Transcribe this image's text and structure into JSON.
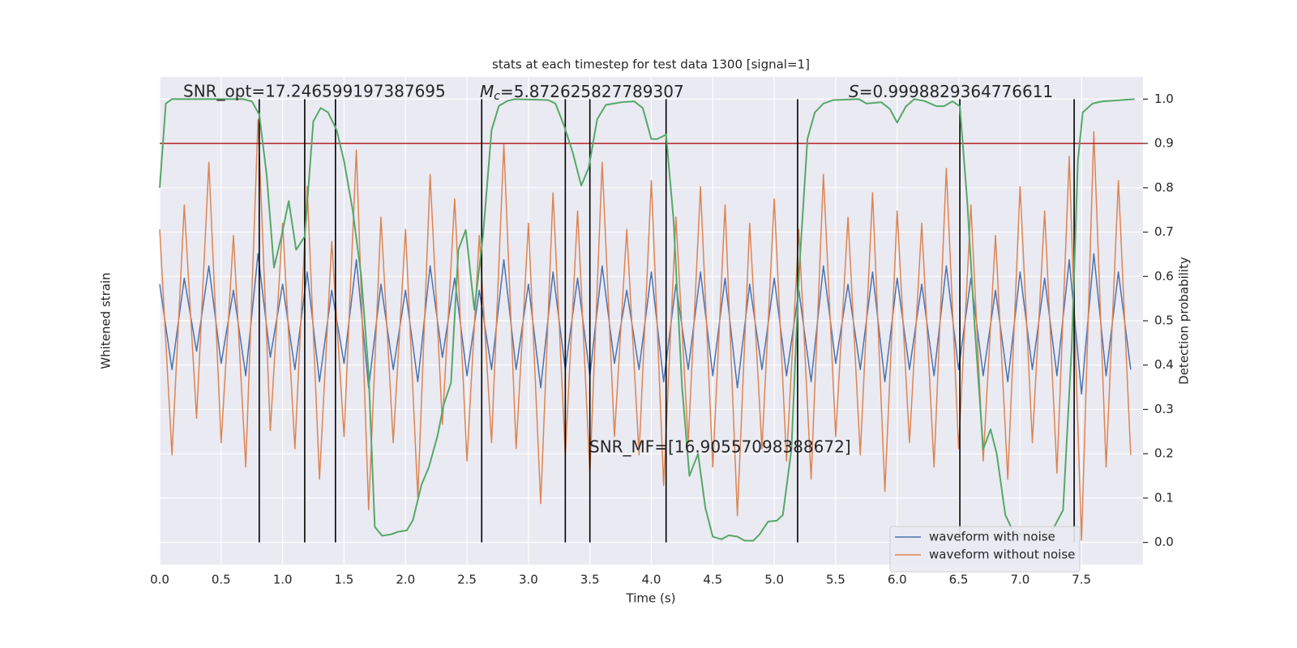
{
  "chart_data": {
    "type": "line",
    "title": "stats at each timestep for test data 1300 [signal=1]",
    "xlabel": "Time (s)",
    "ylabel": "Whitened strain",
    "y2label": "Detection probability",
    "xlim": [
      0,
      8
    ],
    "xticks": [
      {
        "value": 0,
        "label": "0.0"
      },
      {
        "value": 0.5,
        "label": "0.5"
      },
      {
        "value": 1,
        "label": "1.0"
      },
      {
        "value": 1.5,
        "label": "1.5"
      },
      {
        "value": 2,
        "label": "2.0"
      },
      {
        "value": 2.5,
        "label": "2.5"
      },
      {
        "value": 3,
        "label": "3.0"
      },
      {
        "value": 3.5,
        "label": "3.5"
      },
      {
        "value": 4,
        "label": "4.0"
      },
      {
        "value": 4.5,
        "label": "4.5"
      },
      {
        "value": 5,
        "label": "5.0"
      },
      {
        "value": 5.5,
        "label": "5.5"
      },
      {
        "value": 6,
        "label": "6.0"
      },
      {
        "value": 6.5,
        "label": "6.5"
      },
      {
        "value": 7,
        "label": "7.0"
      },
      {
        "value": 7.5,
        "label": "7.5"
      }
    ],
    "ylim": [
      -4,
      4
    ],
    "y2lim": [
      -0.05,
      1.05
    ],
    "y2ticks": [
      {
        "value": 0,
        "label": "0.0"
      },
      {
        "value": 0.1,
        "label": "0.1"
      },
      {
        "value": 0.2,
        "label": "0.2"
      },
      {
        "value": 0.3,
        "label": "0.3"
      },
      {
        "value": 0.4,
        "label": "0.4"
      },
      {
        "value": 0.5,
        "label": "0.5"
      },
      {
        "value": 0.6,
        "label": "0.6"
      },
      {
        "value": 0.7,
        "label": "0.7"
      },
      {
        "value": 0.8,
        "label": "0.8"
      },
      {
        "value": 0.9,
        "label": "0.9"
      },
      {
        "value": 1,
        "label": "1.0"
      }
    ],
    "grid": true,
    "legend": "lower right",
    "x": [
      0,
      0.1,
      0.2,
      0.3,
      0.4,
      0.5,
      0.6,
      0.7,
      0.8,
      0.9,
      1,
      1.1,
      1.2,
      1.3,
      1.4,
      1.5,
      1.6,
      1.7,
      1.8,
      1.9,
      2,
      2.1,
      2.2,
      2.3,
      2.4,
      2.5,
      2.6,
      2.7,
      2.8,
      2.9,
      3,
      3.1,
      3.2,
      3.3,
      3.4,
      3.5,
      3.6,
      3.7,
      3.8,
      3.9,
      4,
      4.1,
      4.2,
      4.3,
      4.4,
      4.5,
      4.6,
      4.7,
      4.8,
      4.9,
      5,
      5.1,
      5.2,
      5.3,
      5.4,
      5.5,
      5.6,
      5.7,
      5.8,
      5.9,
      6,
      6.1,
      6.2,
      6.3,
      6.4,
      6.5,
      6.6,
      6.7,
      6.8,
      6.9,
      7,
      7.1,
      7.2,
      7.3,
      7.4,
      7.5,
      7.6,
      7.7,
      7.8,
      7.9
    ],
    "series": [
      {
        "name": "waveform with noise",
        "color": "#4c72b0",
        "values": [
          0.6,
          -0.8,
          0.7,
          -0.5,
          0.9,
          -0.7,
          0.5,
          -0.9,
          1.1,
          -0.6,
          0.6,
          -0.8,
          0.8,
          -1.0,
          0.5,
          -0.7,
          1.0,
          -1.1,
          0.6,
          -0.8,
          0.5,
          -1.0,
          0.9,
          -0.6,
          0.7,
          -0.9,
          0.5,
          -0.8,
          1.0,
          -0.8,
          0.6,
          -1.1,
          0.8,
          -0.8,
          0.7,
          -0.9,
          0.9,
          -0.7,
          0.5,
          -0.8,
          0.8,
          -1.0,
          0.6,
          -0.8,
          0.8,
          -0.9,
          0.7,
          -1.1,
          0.6,
          -0.8,
          0.7,
          -0.9,
          0.5,
          -1.0,
          0.9,
          -0.7,
          0.6,
          -0.8,
          0.8,
          -1.0,
          0.7,
          -0.8,
          0.6,
          -0.9,
          0.9,
          -0.8,
          0.7,
          -0.9,
          0.5,
          -1.0,
          0.8,
          -0.8,
          0.7,
          -0.9,
          1.0,
          -1.2,
          1.1,
          -0.9,
          0.8,
          -0.8
        ]
      },
      {
        "name": "waveform without noise",
        "color": "#dd8452",
        "values": [
          1.5,
          -2.2,
          1.9,
          -1.6,
          2.6,
          -2.0,
          1.4,
          -2.4,
          3.3,
          -1.8,
          1.6,
          -2.1,
          2.2,
          -2.6,
          1.3,
          -1.9,
          2.8,
          -3.1,
          1.7,
          -2.0,
          1.5,
          -2.9,
          2.4,
          -1.7,
          2.0,
          -2.3,
          1.4,
          -2.0,
          2.9,
          -2.1,
          1.6,
          -3.0,
          2.1,
          -2.2,
          1.8,
          -2.5,
          2.6,
          -1.9,
          1.5,
          -2.2,
          2.3,
          -2.7,
          1.7,
          -2.0,
          2.2,
          -2.4,
          1.9,
          -3.2,
          1.6,
          -2.1,
          2.0,
          -2.3,
          1.5,
          -2.6,
          2.4,
          -1.9,
          1.7,
          -2.2,
          2.1,
          -2.8,
          1.8,
          -2.0,
          1.6,
          -2.4,
          2.5,
          -2.1,
          1.9,
          -2.3,
          1.4,
          -2.6,
          2.2,
          -2.0,
          1.8,
          -2.5,
          2.7,
          -3.6,
          3.1,
          -2.4,
          2.3,
          -2.2
        ]
      },
      {
        "color": "#55a868",
        "axis": "y2",
        "x": [
          0,
          0.05,
          0.1,
          0.68,
          0.75,
          0.81,
          0.87,
          0.93,
          0.99,
          1.05,
          1.11,
          1.18,
          1.25,
          1.31,
          1.37,
          1.44,
          1.5,
          1.57,
          1.64,
          1.7,
          1.75,
          1.81,
          1.88,
          1.94,
          2.01,
          2.06,
          2.13,
          2.19,
          2.26,
          2.31,
          2.37,
          2.43,
          2.49,
          2.56,
          2.63,
          2.7,
          2.76,
          2.83,
          2.89,
          3.16,
          3.22,
          3.29,
          3.36,
          3.43,
          3.49,
          3.56,
          3.63,
          3.76,
          3.86,
          3.93,
          4.0,
          4.05,
          4.12,
          4.18,
          4.25,
          4.31,
          4.38,
          4.44,
          4.5,
          4.57,
          4.63,
          4.7,
          4.76,
          4.83,
          4.88,
          4.95,
          5.02,
          5.07,
          5.14,
          5.2,
          5.27,
          5.33,
          5.4,
          5.48,
          5.69,
          5.75,
          5.87,
          5.94,
          6.0,
          6.07,
          6.14,
          6.22,
          6.32,
          6.38,
          6.45,
          6.51,
          6.57,
          6.63,
          6.7,
          6.76,
          6.81,
          6.88,
          6.94,
          7.01,
          7.07,
          7.2,
          7.28,
          7.35,
          7.42,
          7.47,
          7.51,
          7.59,
          7.67,
          7.93
        ],
        "values": [
          0.8,
          0.99,
          1.0,
          1.0,
          0.995,
          0.965,
          0.83,
          0.62,
          0.69,
          0.77,
          0.66,
          0.69,
          0.95,
          0.98,
          0.97,
          0.93,
          0.86,
          0.75,
          0.6,
          0.38,
          0.035,
          0.015,
          0.018,
          0.024,
          0.027,
          0.05,
          0.13,
          0.17,
          0.24,
          0.31,
          0.36,
          0.66,
          0.705,
          0.525,
          0.69,
          0.93,
          0.985,
          0.996,
          1.0,
          0.998,
          0.99,
          0.94,
          0.88,
          0.805,
          0.845,
          0.955,
          0.987,
          0.993,
          0.995,
          0.98,
          0.91,
          0.91,
          0.92,
          0.73,
          0.35,
          0.15,
          0.2,
          0.077,
          0.013,
          0.007,
          0.016,
          0.013,
          0.004,
          0.004,
          0.018,
          0.047,
          0.049,
          0.062,
          0.21,
          0.6,
          0.91,
          0.97,
          0.99,
          0.998,
          1.0,
          0.99,
          0.993,
          0.978,
          0.947,
          0.983,
          1.0,
          0.996,
          0.984,
          0.984,
          0.995,
          0.984,
          0.77,
          0.49,
          0.21,
          0.255,
          0.2,
          0.062,
          0.027,
          0.018,
          0.004,
          0.01,
          0.036,
          0.073,
          0.44,
          0.86,
          0.97,
          0.99,
          0.995,
          1.0
        ]
      }
    ],
    "threshold": {
      "value": 0.9,
      "color": "#b22222"
    },
    "vlines": {
      "color": "#000000",
      "x": [
        0.81,
        1.18,
        1.43,
        2.62,
        3.3,
        3.5,
        4.12,
        5.19,
        6.51,
        7.44
      ]
    },
    "annotations": {
      "snr_opt": "SNR_opt=17.246599197387695",
      "chirp_mass": {
        "symbol": "M",
        "subscript": "c",
        "value": "=5.872625827789307"
      },
      "statistic": {
        "symbol": "S",
        "value": "=0.9998829364776611"
      },
      "snr_mf": "SNR_MF=[16.90557098388672]"
    }
  }
}
